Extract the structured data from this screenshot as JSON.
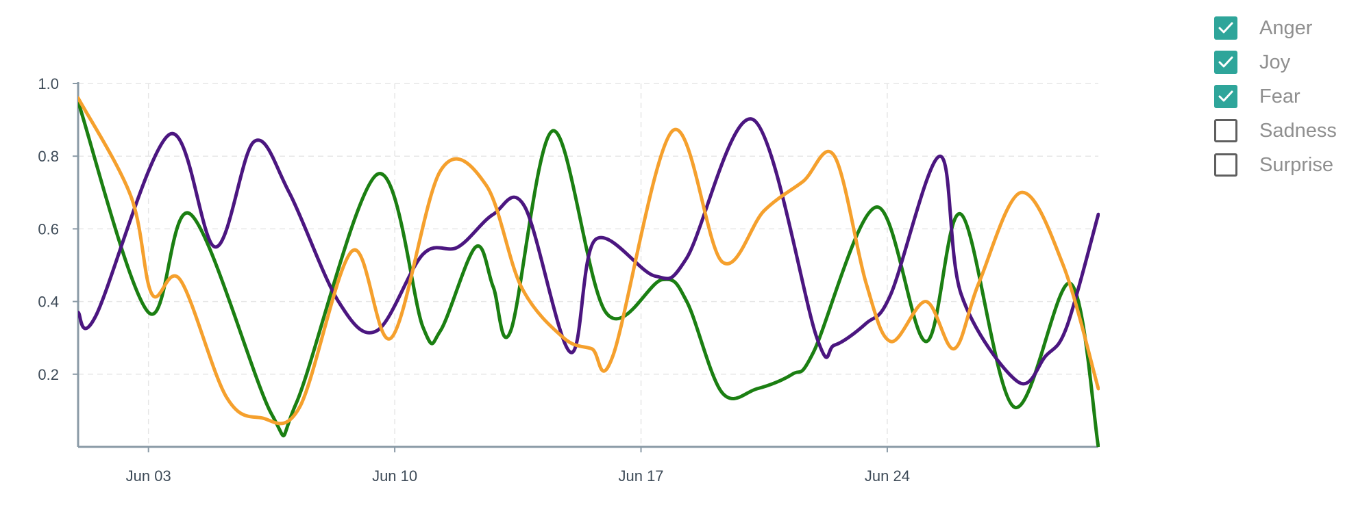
{
  "chart_data": {
    "type": "line",
    "title": "",
    "xlabel": "",
    "ylabel": "",
    "x_ticks": [
      "Jun 03",
      "Jun 10",
      "Jun 17",
      "Jun 24"
    ],
    "y_ticks": [
      "1.0",
      "0.8",
      "0.6",
      "0.4",
      "0.2"
    ],
    "ylim": [
      0,
      1.0
    ],
    "xlim": [
      1,
      30
    ],
    "grid": true,
    "legend_position": "top-right",
    "legend": [
      {
        "name": "Anger",
        "checked": true
      },
      {
        "name": "Joy",
        "checked": true
      },
      {
        "name": "Fear",
        "checked": true
      },
      {
        "name": "Sadness",
        "checked": false
      },
      {
        "name": "Surprise",
        "checked": false
      }
    ],
    "series": [
      {
        "name": "Green",
        "color": "#1b7f12",
        "x": [
          1,
          3,
          4.2,
          6.5,
          7.2,
          9.5,
          10.8,
          11.3,
          12.3,
          12.8,
          13.3,
          14.5,
          16,
          17.6,
          18.3,
          19.3,
          20.3,
          21.3,
          21.9,
          23.7,
          25.1,
          26.1,
          27.6,
          29.2,
          30
        ],
        "values": [
          0.95,
          0.37,
          0.64,
          0.09,
          0.12,
          0.75,
          0.33,
          0.32,
          0.55,
          0.44,
          0.32,
          0.87,
          0.37,
          0.46,
          0.4,
          0.15,
          0.16,
          0.2,
          0.26,
          0.66,
          0.29,
          0.64,
          0.11,
          0.45,
          0.0
        ]
      },
      {
        "name": "Purple",
        "color": "#4b1680",
        "x": [
          1,
          1.5,
          3.6,
          4.9,
          6,
          7,
          8.4,
          9.5,
          10.8,
          11.8,
          12.8,
          13.7,
          15,
          15.7,
          17.4,
          18.3,
          20.2,
          22,
          22.5,
          23.4,
          24.1,
          25.5,
          26.1,
          27.7,
          28.5,
          29.1,
          30
        ],
        "values": [
          0.37,
          0.36,
          0.86,
          0.55,
          0.84,
          0.7,
          0.4,
          0.32,
          0.53,
          0.55,
          0.64,
          0.66,
          0.26,
          0.57,
          0.47,
          0.52,
          0.9,
          0.3,
          0.28,
          0.34,
          0.42,
          0.8,
          0.42,
          0.18,
          0.25,
          0.33,
          0.64
        ]
      },
      {
        "name": "Orange",
        "color": "#f5a02d",
        "x": [
          1,
          2.5,
          3.1,
          3.9,
          5.2,
          6.2,
          7.3,
          8.8,
          9.9,
          11.3,
          12.6,
          13.6,
          14.8,
          15.6,
          16.2,
          17.9,
          19.3,
          20.5,
          21.6,
          22.5,
          23.4,
          24.1,
          25.1,
          25.9,
          26.6,
          27.8,
          29,
          30
        ],
        "values": [
          0.96,
          0.69,
          0.42,
          0.46,
          0.14,
          0.08,
          0.11,
          0.54,
          0.3,
          0.76,
          0.72,
          0.44,
          0.3,
          0.27,
          0.25,
          0.87,
          0.51,
          0.65,
          0.73,
          0.8,
          0.45,
          0.29,
          0.4,
          0.27,
          0.45,
          0.7,
          0.5,
          0.16
        ]
      }
    ]
  }
}
